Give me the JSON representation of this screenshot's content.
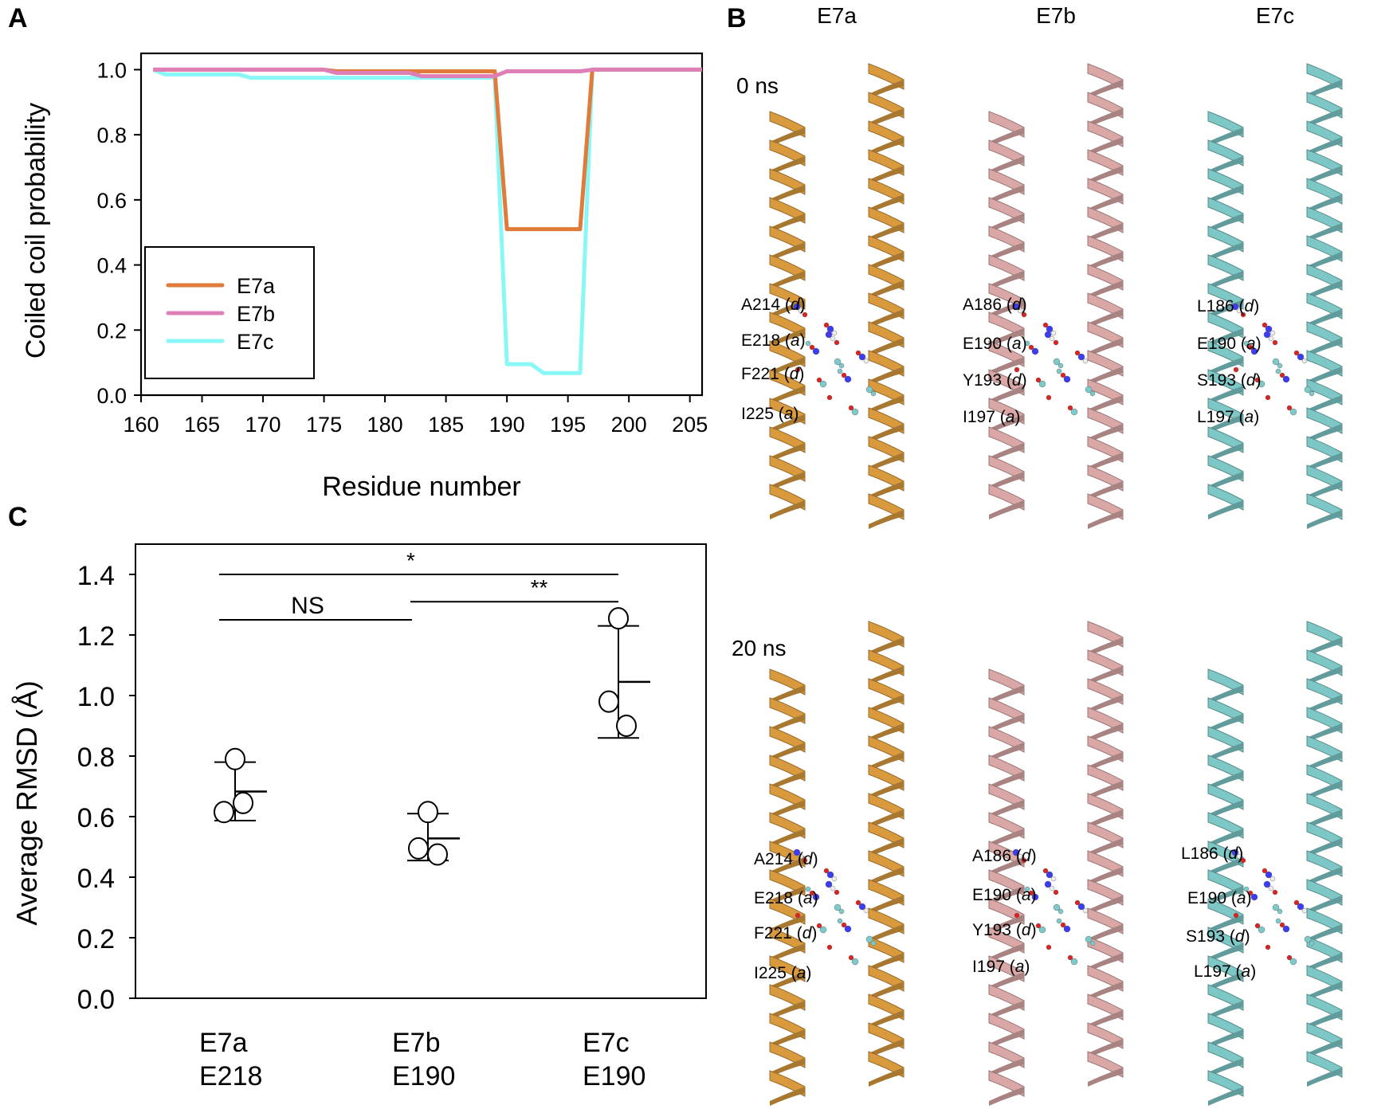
{
  "panels": {
    "A": {
      "letter": "A"
    },
    "B": {
      "letter": "B"
    },
    "C": {
      "letter": "C"
    }
  },
  "colors": {
    "E7a": "#E07B39",
    "E7b": "#DE7FB8",
    "E7c": "#8AF7F7",
    "E7a_structure": "#D99A3E",
    "E7b_structure": "#D9A8A6",
    "E7c_structure": "#7EC7C7"
  },
  "chart_data": [
    {
      "panel": "A",
      "type": "line",
      "title": "",
      "xlabel": "Residue number",
      "ylabel": "Coiled coil probability",
      "xlim": [
        160,
        206
      ],
      "ylim": [
        0.0,
        1.05
      ],
      "xticks": [
        160,
        165,
        170,
        175,
        180,
        185,
        190,
        195,
        200,
        205
      ],
      "yticks": [
        "0.0",
        "0.2",
        "0.4",
        "0.6",
        "0.8",
        "1.0"
      ],
      "grid": false,
      "legend_position": "lower left",
      "legend": [
        "E7a",
        "E7b",
        "E7c"
      ],
      "series": [
        {
          "name": "E7a",
          "x": [
            161,
            175,
            176,
            189,
            190,
            196,
            197,
            206
          ],
          "y": [
            1.0,
            1.0,
            0.995,
            0.995,
            0.51,
            0.51,
            1.0,
            1.0
          ]
        },
        {
          "name": "E7b",
          "x": [
            161,
            175,
            176,
            182,
            183,
            189,
            190,
            196,
            197,
            206
          ],
          "y": [
            1.0,
            1.0,
            0.99,
            0.99,
            0.98,
            0.98,
            0.995,
            0.995,
            1.0,
            1.0
          ]
        },
        {
          "name": "E7c",
          "x": [
            161,
            162,
            168,
            169,
            189,
            190,
            192,
            193,
            196,
            197,
            206
          ],
          "y": [
            1.0,
            0.985,
            0.985,
            0.975,
            0.975,
            0.095,
            0.095,
            0.068,
            0.068,
            1.0,
            1.0
          ]
        }
      ]
    },
    {
      "panel": "C",
      "type": "scatter",
      "title": "",
      "xlabel": "",
      "ylabel": "Average RMSD (Å)",
      "ylim": [
        0.0,
        1.5
      ],
      "yticks": [
        "0.0",
        "0.2",
        "0.4",
        "0.6",
        "0.8",
        "1.0",
        "1.2",
        "1.4"
      ],
      "grid": false,
      "categories": [
        {
          "line1": "E7a",
          "line2": "E218"
        },
        {
          "line1": "E7b",
          "line2": "E190"
        },
        {
          "line1": "E7c",
          "line2": "E190"
        }
      ],
      "points": [
        {
          "category": "E7a",
          "values": [
            0.79,
            0.645,
            0.615
          ],
          "mean": 0.683,
          "sd_upper": 0.78,
          "sd_lower": 0.587
        },
        {
          "category": "E7b",
          "values": [
            0.615,
            0.495,
            0.475
          ],
          "mean": 0.528,
          "sd_upper": 0.61,
          "sd_lower": 0.455
        },
        {
          "category": "E7c",
          "values": [
            1.255,
            0.98,
            0.9
          ],
          "mean": 1.045,
          "sd_upper": 1.23,
          "sd_lower": 0.86
        }
      ],
      "significance": [
        {
          "from": "E7a",
          "to": "E7c",
          "y": 1.4,
          "label": "*"
        },
        {
          "from": "E7a",
          "to": "E7b",
          "y": 1.25,
          "label": "NS"
        },
        {
          "from": "E7b",
          "to": "E7c",
          "y": 1.31,
          "label": "**"
        }
      ]
    }
  ],
  "panelB": {
    "columns": [
      "E7a",
      "E7b",
      "E7c"
    ],
    "times": [
      "0 ns",
      "20 ns"
    ],
    "residues": {
      "E7a": [
        {
          "name": "A214",
          "pos": "d"
        },
        {
          "name": "E218",
          "pos": "a"
        },
        {
          "name": "F221",
          "pos": "d"
        },
        {
          "name": "I225",
          "pos": "a"
        }
      ],
      "E7b": [
        {
          "name": "A186",
          "pos": "d"
        },
        {
          "name": "E190",
          "pos": "a"
        },
        {
          "name": "Y193",
          "pos": "d"
        },
        {
          "name": "I197",
          "pos": "a"
        }
      ],
      "E7c": [
        {
          "name": "L186",
          "pos": "d"
        },
        {
          "name": "E190",
          "pos": "a"
        },
        {
          "name": "S193",
          "pos": "d"
        },
        {
          "name": "L197",
          "pos": "a"
        }
      ]
    }
  }
}
